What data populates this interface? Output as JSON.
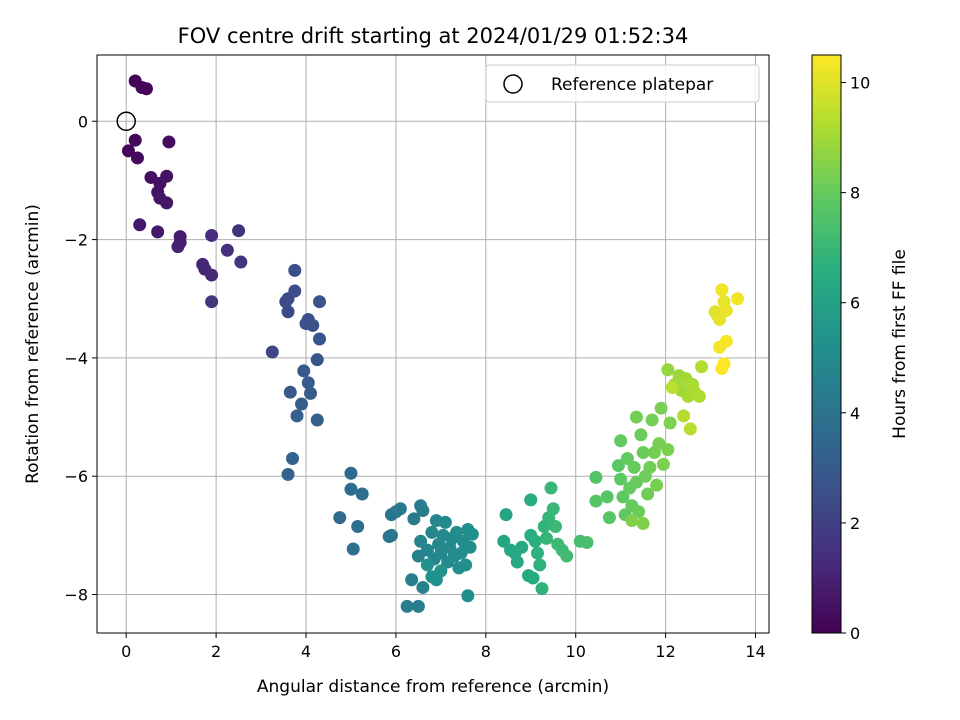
{
  "chart_data": {
    "type": "scatter",
    "title": "FOV centre drift starting at 2024/01/29 01:52:34",
    "xlabel": "Angular distance from reference (arcmin)",
    "ylabel": "Rotation from reference (arcmin)",
    "xlim": [
      -0.65,
      14.3
    ],
    "ylim": [
      -8.65,
      1.12
    ],
    "x_ticks": [
      0,
      2,
      4,
      6,
      8,
      10,
      12,
      14
    ],
    "y_ticks": [
      0,
      -2,
      -4,
      -6,
      -8
    ],
    "grid": true,
    "legend": {
      "position": "top-right",
      "entries": [
        "Reference platepar"
      ]
    },
    "reference_point": {
      "x": 0,
      "y": 0
    },
    "colorbar": {
      "label": "Hours from first FF file",
      "range": [
        0,
        10.5
      ],
      "ticks": [
        0,
        2,
        4,
        6,
        8,
        10
      ],
      "colormap": "viridis"
    },
    "points": [
      {
        "x": 0.2,
        "y": 0.68,
        "h": 0.05
      },
      {
        "x": 0.35,
        "y": 0.57,
        "h": 0.1
      },
      {
        "x": 0.45,
        "y": 0.55,
        "h": 0.12
      },
      {
        "x": 0.05,
        "y": -0.5,
        "h": 0.15
      },
      {
        "x": 0.2,
        "y": -0.32,
        "h": 0.2
      },
      {
        "x": 0.25,
        "y": -0.62,
        "h": 0.25
      },
      {
        "x": 0.95,
        "y": -0.35,
        "h": 0.3
      },
      {
        "x": 0.55,
        "y": -0.95,
        "h": 0.4
      },
      {
        "x": 0.75,
        "y": -1.05,
        "h": 0.45
      },
      {
        "x": 0.7,
        "y": -1.2,
        "h": 0.5
      },
      {
        "x": 0.9,
        "y": -0.93,
        "h": 0.55
      },
      {
        "x": 0.75,
        "y": -1.3,
        "h": 0.6
      },
      {
        "x": 0.9,
        "y": -1.38,
        "h": 0.65
      },
      {
        "x": 0.3,
        "y": -1.75,
        "h": 0.7
      },
      {
        "x": 0.7,
        "y": -1.87,
        "h": 0.75
      },
      {
        "x": 1.2,
        "y": -1.95,
        "h": 0.85
      },
      {
        "x": 1.2,
        "y": -2.05,
        "h": 0.9
      },
      {
        "x": 1.15,
        "y": -2.12,
        "h": 0.95
      },
      {
        "x": 1.7,
        "y": -2.42,
        "h": 1.1
      },
      {
        "x": 1.75,
        "y": -2.5,
        "h": 1.15
      },
      {
        "x": 1.9,
        "y": -2.6,
        "h": 1.2
      },
      {
        "x": 1.9,
        "y": -1.93,
        "h": 1.3
      },
      {
        "x": 2.25,
        "y": -2.18,
        "h": 1.4
      },
      {
        "x": 2.5,
        "y": -1.85,
        "h": 1.5
      },
      {
        "x": 2.55,
        "y": -2.38,
        "h": 1.55
      },
      {
        "x": 1.9,
        "y": -3.05,
        "h": 1.6
      },
      {
        "x": 3.25,
        "y": -3.9,
        "h": 2.2
      },
      {
        "x": 3.55,
        "y": -3.05,
        "h": 2.3
      },
      {
        "x": 3.6,
        "y": -3.22,
        "h": 2.35
      },
      {
        "x": 3.6,
        "y": -3.0,
        "h": 2.4
      },
      {
        "x": 3.75,
        "y": -2.87,
        "h": 2.45
      },
      {
        "x": 3.75,
        "y": -2.52,
        "h": 2.5
      },
      {
        "x": 4.0,
        "y": -3.42,
        "h": 2.55
      },
      {
        "x": 4.05,
        "y": -3.35,
        "h": 2.6
      },
      {
        "x": 4.15,
        "y": -3.45,
        "h": 2.65
      },
      {
        "x": 4.3,
        "y": -3.05,
        "h": 2.7
      },
      {
        "x": 4.3,
        "y": -3.68,
        "h": 2.75
      },
      {
        "x": 4.25,
        "y": -4.03,
        "h": 2.8
      },
      {
        "x": 3.65,
        "y": -4.58,
        "h": 2.9
      },
      {
        "x": 3.95,
        "y": -4.22,
        "h": 2.95
      },
      {
        "x": 4.05,
        "y": -4.42,
        "h": 3.0
      },
      {
        "x": 4.1,
        "y": -4.6,
        "h": 3.05
      },
      {
        "x": 3.9,
        "y": -4.78,
        "h": 3.1
      },
      {
        "x": 3.8,
        "y": -4.98,
        "h": 3.15
      },
      {
        "x": 4.25,
        "y": -5.05,
        "h": 3.2
      },
      {
        "x": 3.7,
        "y": -5.7,
        "h": 3.25
      },
      {
        "x": 3.6,
        "y": -5.97,
        "h": 3.3
      },
      {
        "x": 4.75,
        "y": -6.7,
        "h": 3.6
      },
      {
        "x": 5.0,
        "y": -5.95,
        "h": 3.65
      },
      {
        "x": 5.0,
        "y": -6.22,
        "h": 3.7
      },
      {
        "x": 5.25,
        "y": -6.3,
        "h": 3.75
      },
      {
        "x": 5.15,
        "y": -6.85,
        "h": 3.8
      },
      {
        "x": 5.05,
        "y": -7.23,
        "h": 3.85
      },
      {
        "x": 5.85,
        "y": -7.02,
        "h": 4.0
      },
      {
        "x": 5.9,
        "y": -7.0,
        "h": 4.05
      },
      {
        "x": 5.9,
        "y": -6.65,
        "h": 4.1
      },
      {
        "x": 6.0,
        "y": -6.6,
        "h": 4.15
      },
      {
        "x": 6.1,
        "y": -6.55,
        "h": 4.2
      },
      {
        "x": 6.4,
        "y": -6.72,
        "h": 4.3
      },
      {
        "x": 6.55,
        "y": -6.5,
        "h": 4.35
      },
      {
        "x": 6.6,
        "y": -6.58,
        "h": 4.4
      },
      {
        "x": 6.25,
        "y": -8.2,
        "h": 4.45
      },
      {
        "x": 6.5,
        "y": -8.2,
        "h": 4.5
      },
      {
        "x": 6.35,
        "y": -7.75,
        "h": 4.55
      },
      {
        "x": 6.6,
        "y": -7.88,
        "h": 4.6
      },
      {
        "x": 6.5,
        "y": -7.35,
        "h": 4.65
      },
      {
        "x": 6.55,
        "y": -7.1,
        "h": 4.7
      },
      {
        "x": 6.7,
        "y": -7.25,
        "h": 4.72
      },
      {
        "x": 6.8,
        "y": -6.95,
        "h": 4.75
      },
      {
        "x": 6.85,
        "y": -7.4,
        "h": 4.78
      },
      {
        "x": 6.9,
        "y": -6.75,
        "h": 4.8
      },
      {
        "x": 6.95,
        "y": -7.15,
        "h": 4.82
      },
      {
        "x": 7.0,
        "y": -7.3,
        "h": 4.85
      },
      {
        "x": 7.05,
        "y": -7.0,
        "h": 4.88
      },
      {
        "x": 7.1,
        "y": -6.78,
        "h": 4.9
      },
      {
        "x": 7.15,
        "y": -7.45,
        "h": 4.92
      },
      {
        "x": 7.2,
        "y": -7.2,
        "h": 4.95
      },
      {
        "x": 7.25,
        "y": -7.05,
        "h": 4.97
      },
      {
        "x": 7.3,
        "y": -7.35,
        "h": 5.0
      },
      {
        "x": 7.35,
        "y": -6.95,
        "h": 5.02
      },
      {
        "x": 7.4,
        "y": -7.55,
        "h": 5.05
      },
      {
        "x": 7.45,
        "y": -7.3,
        "h": 5.07
      },
      {
        "x": 7.5,
        "y": -7.1,
        "h": 5.1
      },
      {
        "x": 7.55,
        "y": -7.5,
        "h": 5.12
      },
      {
        "x": 7.6,
        "y": -6.9,
        "h": 5.15
      },
      {
        "x": 7.65,
        "y": -7.2,
        "h": 5.17
      },
      {
        "x": 7.7,
        "y": -6.98,
        "h": 5.2
      },
      {
        "x": 7.6,
        "y": -8.02,
        "h": 5.22
      },
      {
        "x": 6.9,
        "y": -7.75,
        "h": 5.25
      },
      {
        "x": 6.8,
        "y": -7.7,
        "h": 5.27
      },
      {
        "x": 6.7,
        "y": -7.5,
        "h": 5.3
      },
      {
        "x": 7.0,
        "y": -7.6,
        "h": 5.32
      },
      {
        "x": 8.45,
        "y": -6.65,
        "h": 6.1
      },
      {
        "x": 8.4,
        "y": -7.1,
        "h": 6.15
      },
      {
        "x": 8.55,
        "y": -7.25,
        "h": 6.2
      },
      {
        "x": 8.65,
        "y": -7.3,
        "h": 6.25
      },
      {
        "x": 8.7,
        "y": -7.45,
        "h": 6.3
      },
      {
        "x": 8.8,
        "y": -7.2,
        "h": 6.35
      },
      {
        "x": 8.95,
        "y": -7.68,
        "h": 6.4
      },
      {
        "x": 9.05,
        "y": -7.72,
        "h": 6.45
      },
      {
        "x": 9.0,
        "y": -6.4,
        "h": 6.5
      },
      {
        "x": 9.0,
        "y": -7.0,
        "h": 6.55
      },
      {
        "x": 9.1,
        "y": -7.1,
        "h": 6.6
      },
      {
        "x": 9.15,
        "y": -7.3,
        "h": 6.65
      },
      {
        "x": 9.2,
        "y": -7.5,
        "h": 6.7
      },
      {
        "x": 9.25,
        "y": -7.9,
        "h": 6.75
      },
      {
        "x": 9.3,
        "y": -6.85,
        "h": 6.8
      },
      {
        "x": 9.35,
        "y": -7.05,
        "h": 6.85
      },
      {
        "x": 9.4,
        "y": -6.7,
        "h": 6.9
      },
      {
        "x": 9.45,
        "y": -6.2,
        "h": 6.95
      },
      {
        "x": 9.5,
        "y": -6.55,
        "h": 7.0
      },
      {
        "x": 9.55,
        "y": -6.85,
        "h": 7.05
      },
      {
        "x": 9.6,
        "y": -7.15,
        "h": 7.1
      },
      {
        "x": 9.7,
        "y": -7.25,
        "h": 7.15
      },
      {
        "x": 9.8,
        "y": -7.35,
        "h": 7.2
      },
      {
        "x": 10.1,
        "y": -7.1,
        "h": 7.3
      },
      {
        "x": 10.25,
        "y": -7.12,
        "h": 7.35
      },
      {
        "x": 10.45,
        "y": -6.02,
        "h": 7.6
      },
      {
        "x": 10.45,
        "y": -6.42,
        "h": 7.65
      },
      {
        "x": 10.7,
        "y": -6.35,
        "h": 7.7
      },
      {
        "x": 10.75,
        "y": -6.7,
        "h": 7.75
      },
      {
        "x": 10.95,
        "y": -5.82,
        "h": 7.8
      },
      {
        "x": 11.0,
        "y": -6.05,
        "h": 7.82
      },
      {
        "x": 11.05,
        "y": -6.35,
        "h": 7.85
      },
      {
        "x": 11.1,
        "y": -6.65,
        "h": 7.87
      },
      {
        "x": 11.0,
        "y": -5.4,
        "h": 7.9
      },
      {
        "x": 11.15,
        "y": -5.7,
        "h": 7.92
      },
      {
        "x": 11.2,
        "y": -6.2,
        "h": 7.95
      },
      {
        "x": 11.25,
        "y": -6.5,
        "h": 7.97
      },
      {
        "x": 11.3,
        "y": -5.85,
        "h": 8.0
      },
      {
        "x": 11.35,
        "y": -6.1,
        "h": 8.02
      },
      {
        "x": 11.4,
        "y": -6.6,
        "h": 8.05
      },
      {
        "x": 11.45,
        "y": -5.3,
        "h": 8.07
      },
      {
        "x": 11.5,
        "y": -5.6,
        "h": 8.1
      },
      {
        "x": 11.55,
        "y": -6.0,
        "h": 8.12
      },
      {
        "x": 11.6,
        "y": -6.3,
        "h": 8.15
      },
      {
        "x": 11.65,
        "y": -5.85,
        "h": 8.17
      },
      {
        "x": 11.35,
        "y": -5.0,
        "h": 8.2
      },
      {
        "x": 11.7,
        "y": -5.05,
        "h": 8.22
      },
      {
        "x": 11.75,
        "y": -5.6,
        "h": 8.25
      },
      {
        "x": 11.8,
        "y": -6.15,
        "h": 8.27
      },
      {
        "x": 11.85,
        "y": -5.45,
        "h": 8.3
      },
      {
        "x": 11.9,
        "y": -4.85,
        "h": 8.32
      },
      {
        "x": 11.95,
        "y": -5.8,
        "h": 8.35
      },
      {
        "x": 12.05,
        "y": -5.55,
        "h": 8.37
      },
      {
        "x": 12.1,
        "y": -5.1,
        "h": 8.4
      },
      {
        "x": 11.5,
        "y": -6.8,
        "h": 8.42
      },
      {
        "x": 11.25,
        "y": -6.75,
        "h": 8.45
      },
      {
        "x": 12.05,
        "y": -4.2,
        "h": 8.8
      },
      {
        "x": 12.2,
        "y": -4.45,
        "h": 8.85
      },
      {
        "x": 12.3,
        "y": -4.3,
        "h": 8.9
      },
      {
        "x": 12.35,
        "y": -4.55,
        "h": 8.95
      },
      {
        "x": 12.45,
        "y": -4.35,
        "h": 9.0
      },
      {
        "x": 12.5,
        "y": -4.65,
        "h": 9.05
      },
      {
        "x": 12.6,
        "y": -4.45,
        "h": 9.1
      },
      {
        "x": 12.65,
        "y": -4.58,
        "h": 9.15
      },
      {
        "x": 12.75,
        "y": -4.65,
        "h": 9.2
      },
      {
        "x": 12.8,
        "y": -4.15,
        "h": 9.25
      },
      {
        "x": 12.4,
        "y": -4.98,
        "h": 9.3
      },
      {
        "x": 12.55,
        "y": -5.2,
        "h": 9.35
      },
      {
        "x": 12.15,
        "y": -4.5,
        "h": 9.4
      },
      {
        "x": 13.1,
        "y": -3.22,
        "h": 10.0
      },
      {
        "x": 13.15,
        "y": -3.28,
        "h": 10.05
      },
      {
        "x": 13.2,
        "y": -3.35,
        "h": 10.1
      },
      {
        "x": 13.3,
        "y": -3.05,
        "h": 10.15
      },
      {
        "x": 13.35,
        "y": -3.2,
        "h": 10.2
      },
      {
        "x": 13.25,
        "y": -2.85,
        "h": 10.25
      },
      {
        "x": 13.6,
        "y": -3.0,
        "h": 10.3
      },
      {
        "x": 13.2,
        "y": -3.82,
        "h": 10.35
      },
      {
        "x": 13.35,
        "y": -3.72,
        "h": 10.4
      },
      {
        "x": 13.3,
        "y": -4.1,
        "h": 10.45
      },
      {
        "x": 13.25,
        "y": -4.18,
        "h": 10.5
      }
    ]
  }
}
